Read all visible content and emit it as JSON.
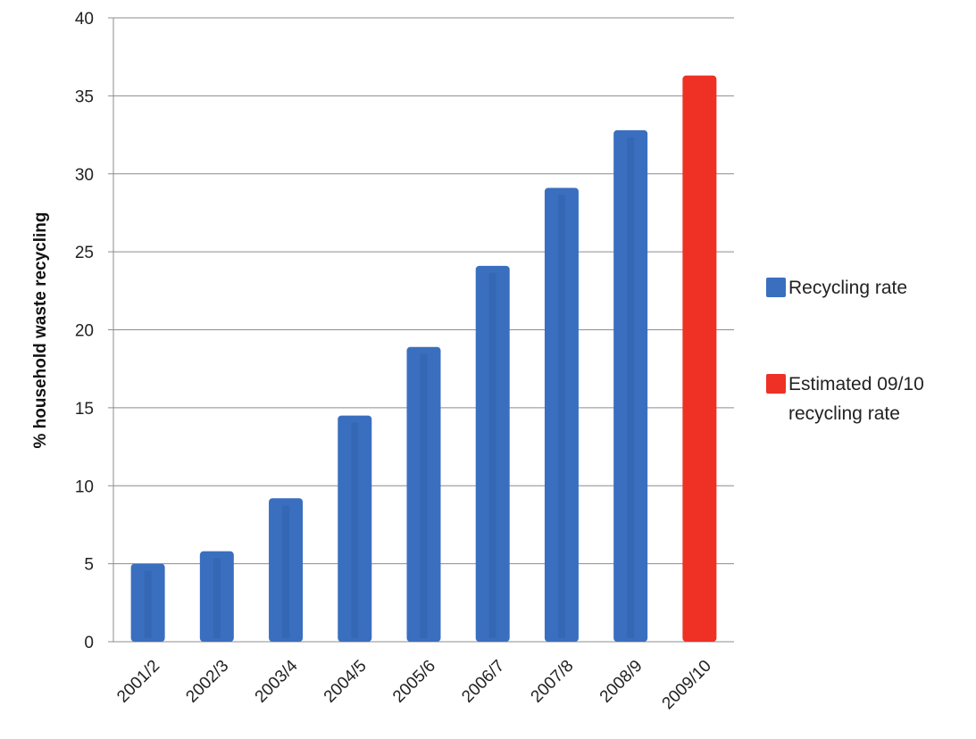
{
  "chart_data": {
    "type": "bar",
    "title": "",
    "xlabel": "",
    "ylabel": "% household waste recycling",
    "ylim": [
      0,
      40
    ],
    "yticks": [
      0,
      5,
      10,
      15,
      20,
      25,
      30,
      35,
      40
    ],
    "grid": true,
    "legend_position": "right",
    "categories": [
      "2001/2",
      "2002/3",
      "2003/4",
      "2004/5",
      "2005/6",
      "2006/7",
      "2007/8",
      "2008/9",
      "2009/10"
    ],
    "series": [
      {
        "name": "Recycling rate",
        "color": "#3A6FBF",
        "values": [
          5.0,
          5.8,
          9.2,
          14.5,
          18.9,
          24.1,
          29.1,
          32.8,
          null
        ]
      },
      {
        "name": "Estimated 09/10 recycling rate",
        "color": "#EE3124",
        "values": [
          null,
          null,
          null,
          null,
          null,
          null,
          null,
          null,
          36.3
        ]
      }
    ]
  }
}
